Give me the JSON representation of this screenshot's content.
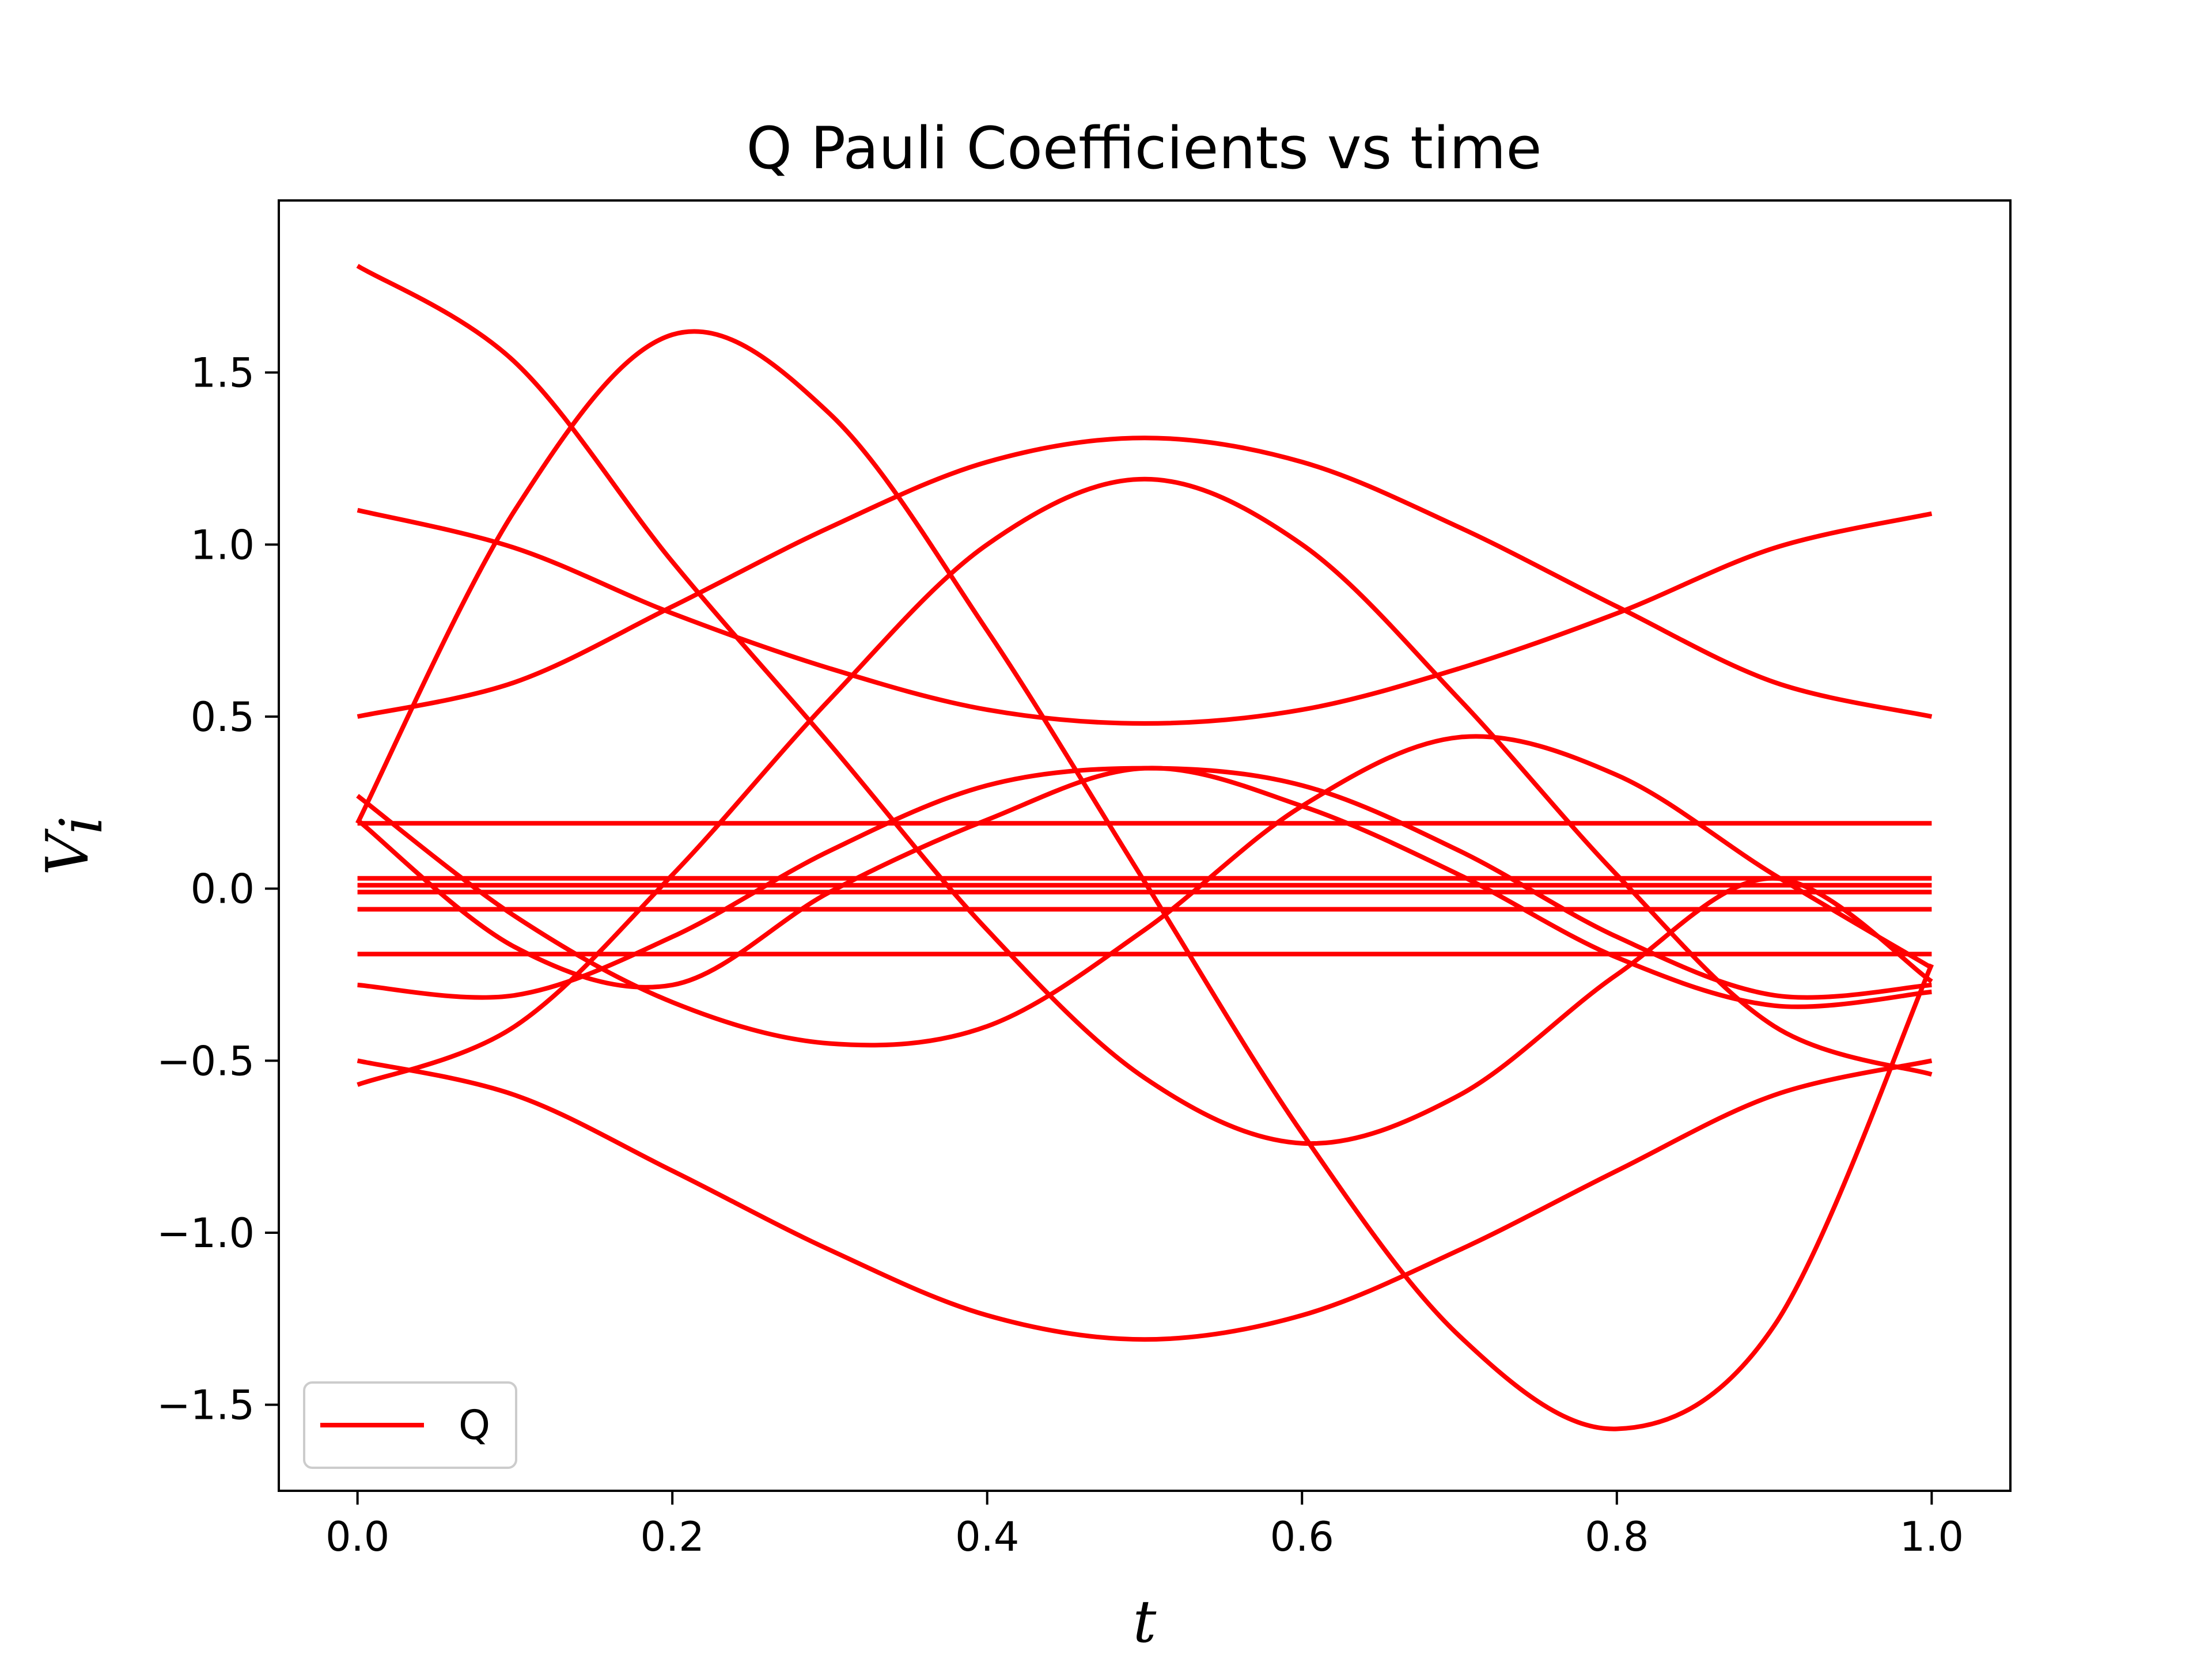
{
  "chart_data": {
    "type": "line",
    "title": "Q Pauli Coefficients vs time",
    "xlabel": "t",
    "ylabel_main": "V",
    "ylabel_sub": "i",
    "xlim": [
      -0.05,
      1.05
    ],
    "ylim": [
      -1.75,
      2.0
    ],
    "xticks": [
      0.0,
      0.2,
      0.4,
      0.6,
      0.8,
      1.0
    ],
    "xtick_labels": [
      "0.0",
      "0.2",
      "0.4",
      "0.6",
      "0.8",
      "1.0"
    ],
    "yticks": [
      -1.5,
      -1.0,
      -0.5,
      0.0,
      0.5,
      1.0,
      1.5
    ],
    "ytick_labels": [
      "−1.5",
      "−1.0",
      "−0.5",
      "0.0",
      "0.5",
      "1.0",
      "1.5"
    ],
    "grid": false,
    "legend": {
      "label": "Q",
      "position": "lower-left"
    },
    "color": "#ff0000",
    "x": [
      0.0,
      0.1,
      0.2,
      0.3,
      0.4,
      0.5,
      0.6,
      0.7,
      0.8,
      0.9,
      1.0
    ],
    "series": [
      {
        "values": [
          1.81,
          1.53,
          0.95,
          0.42,
          -0.12,
          -0.55,
          -0.74,
          -0.6,
          -0.25,
          0.03,
          -0.27
        ]
      },
      {
        "values": [
          0.19,
          1.1,
          1.61,
          1.38,
          0.75,
          0.02,
          -0.71,
          -1.3,
          -1.57,
          -1.27,
          -0.22
        ]
      },
      {
        "values": [
          0.5,
          0.6,
          0.82,
          1.05,
          1.24,
          1.31,
          1.24,
          1.05,
          0.82,
          0.6,
          0.5
        ]
      },
      {
        "values": [
          1.1,
          0.99,
          0.8,
          0.64,
          0.52,
          0.48,
          0.52,
          0.64,
          0.8,
          0.99,
          1.09
        ]
      },
      {
        "values": [
          -0.57,
          -0.4,
          0.04,
          0.55,
          1.0,
          1.19,
          1.0,
          0.55,
          0.04,
          -0.4,
          -0.54
        ]
      },
      {
        "values": [
          -0.5,
          -0.6,
          -0.82,
          -1.05,
          -1.24,
          -1.31,
          -1.24,
          -1.05,
          -0.82,
          -0.6,
          -0.5
        ]
      },
      {
        "values": [
          0.27,
          -0.08,
          -0.33,
          -0.45,
          -0.4,
          -0.12,
          0.24,
          0.44,
          0.33,
          0.04,
          -0.23
        ]
      },
      {
        "values": [
          -0.28,
          -0.31,
          -0.14,
          0.11,
          0.3,
          0.35,
          0.3,
          0.11,
          -0.14,
          -0.31,
          -0.28
        ]
      },
      {
        "values": [
          0.2,
          -0.17,
          -0.28,
          -0.01,
          0.2,
          0.35,
          0.24,
          0.04,
          -0.2,
          -0.34,
          -0.3
        ]
      },
      {
        "values": [
          0.19,
          0.19,
          0.19,
          0.19,
          0.19,
          0.19,
          0.19,
          0.19,
          0.19,
          0.19,
          0.19
        ]
      },
      {
        "values": [
          0.03,
          0.03,
          0.03,
          0.03,
          0.03,
          0.03,
          0.03,
          0.03,
          0.03,
          0.03,
          0.03
        ]
      },
      {
        "values": [
          0.01,
          0.01,
          0.01,
          0.01,
          0.01,
          0.01,
          0.01,
          0.01,
          0.01,
          0.01,
          0.01
        ]
      },
      {
        "values": [
          -0.01,
          -0.01,
          -0.01,
          -0.01,
          -0.01,
          -0.01,
          -0.01,
          -0.01,
          -0.01,
          -0.01,
          -0.01
        ]
      },
      {
        "values": [
          -0.06,
          -0.06,
          -0.06,
          -0.06,
          -0.06,
          -0.06,
          -0.06,
          -0.06,
          -0.06,
          -0.06,
          -0.06
        ]
      },
      {
        "values": [
          -0.19,
          -0.19,
          -0.19,
          -0.19,
          -0.19,
          -0.19,
          -0.19,
          -0.19,
          -0.19,
          -0.19,
          -0.19
        ]
      }
    ]
  }
}
